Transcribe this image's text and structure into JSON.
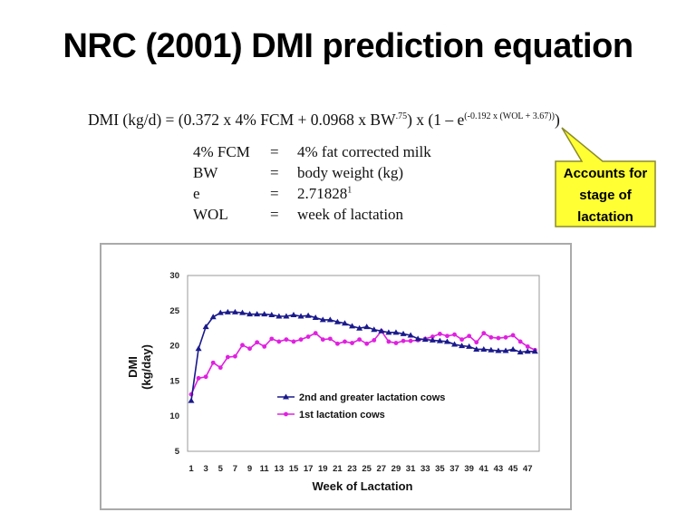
{
  "title": "NRC (2001) DMI prediction equation",
  "equation": {
    "lhs": "DMI (kg/d) = (0.372 x 4% FCM + 0.0968 x BW",
    "bw_exp": ".75",
    "mid": ") x (1 – e",
    "e_exp": "(-0.192 x (WOL + 3.67))",
    "end": ")"
  },
  "definitions": [
    {
      "term": "4% FCM",
      "eq": "=",
      "meaning": "4% fat corrected milk"
    },
    {
      "term": "BW",
      "eq": "=",
      "meaning": "body weight (kg)"
    },
    {
      "term": "e",
      "eq": "=",
      "meaning": "2.71828",
      "sup": "1"
    },
    {
      "term": "WOL",
      "eq": "=",
      "meaning": "week of lactation"
    }
  ],
  "callout": {
    "lines": [
      "Accounts for",
      "stage of",
      "lactation"
    ],
    "fill": "#ffff33",
    "border": "#8a8a2a"
  },
  "chart_data": {
    "type": "line",
    "xlabel": "Week of Lactation",
    "ylabel": "DMI (kg/day)",
    "ylim": [
      5,
      30
    ],
    "yticks": [
      5,
      10,
      15,
      20,
      25,
      30
    ],
    "xticks": [
      1,
      3,
      5,
      7,
      9,
      11,
      13,
      15,
      17,
      19,
      21,
      23,
      25,
      27,
      29,
      31,
      33,
      35,
      37,
      39,
      41,
      43,
      45,
      47
    ],
    "x": [
      1,
      2,
      3,
      4,
      5,
      6,
      7,
      8,
      9,
      10,
      11,
      12,
      13,
      14,
      15,
      16,
      17,
      18,
      19,
      20,
      21,
      22,
      23,
      24,
      25,
      26,
      27,
      28,
      29,
      30,
      31,
      32,
      33,
      34,
      35,
      36,
      37,
      38,
      39,
      40,
      41,
      42,
      43,
      44,
      45,
      46,
      47,
      48
    ],
    "grid": false,
    "legend_position": "center-left",
    "series": [
      {
        "name": "2nd and greater lactation cows",
        "color": "#1a1a8c",
        "marker": "triangle",
        "values": [
          12.2,
          19.6,
          22.7,
          24.1,
          24.7,
          24.8,
          24.8,
          24.7,
          24.5,
          24.5,
          24.5,
          24.4,
          24.2,
          24.2,
          24.4,
          24.2,
          24.3,
          24.0,
          23.7,
          23.7,
          23.4,
          23.2,
          22.8,
          22.5,
          22.7,
          22.3,
          22.1,
          21.9,
          21.9,
          21.7,
          21.5,
          21.0,
          20.9,
          20.8,
          20.7,
          20.6,
          20.2,
          20.0,
          19.9,
          19.5,
          19.5,
          19.4,
          19.3,
          19.3,
          19.5,
          19.1,
          19.2,
          19.2
        ]
      },
      {
        "name": "1st lactation cows",
        "color": "#e020e0",
        "marker": "circle",
        "values": [
          13.1,
          15.4,
          15.6,
          17.6,
          16.9,
          18.4,
          18.5,
          20.1,
          19.6,
          20.5,
          19.9,
          21.0,
          20.6,
          20.9,
          20.6,
          20.9,
          21.3,
          21.8,
          20.9,
          21.0,
          20.3,
          20.6,
          20.4,
          20.9,
          20.3,
          20.8,
          22.1,
          20.6,
          20.4,
          20.7,
          20.7,
          20.8,
          21.0,
          21.3,
          21.7,
          21.4,
          21.6,
          20.9,
          21.4,
          20.5,
          21.8,
          21.2,
          21.1,
          21.2,
          21.5,
          20.6,
          19.9,
          19.4
        ]
      }
    ]
  }
}
